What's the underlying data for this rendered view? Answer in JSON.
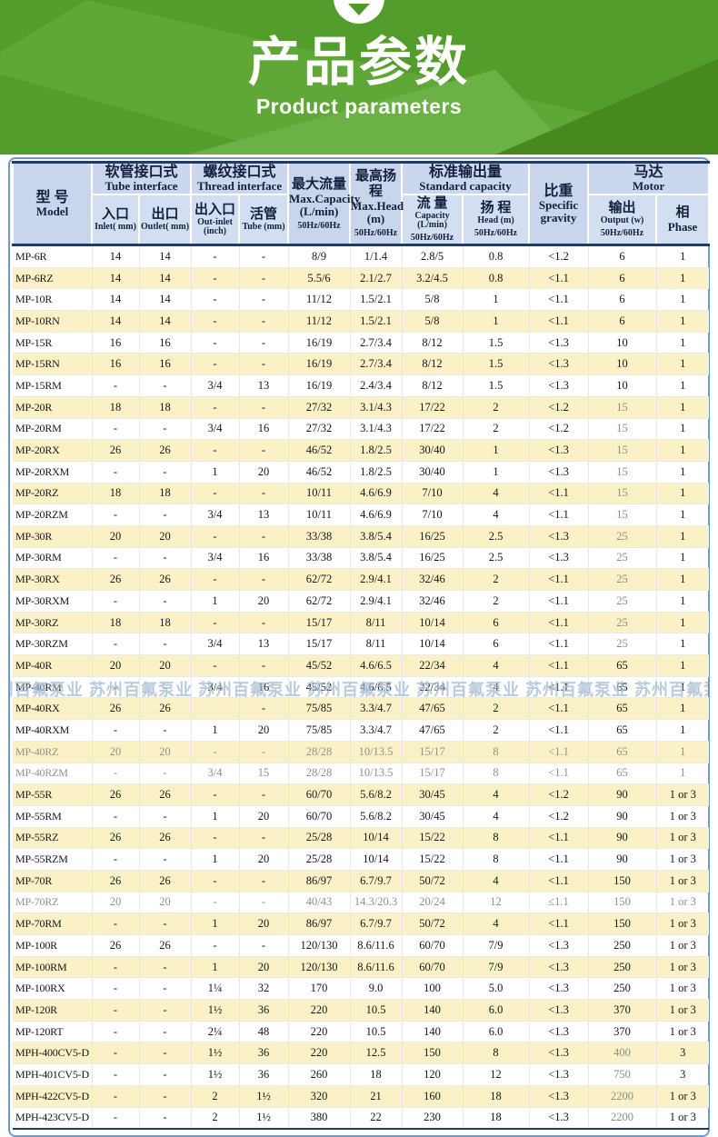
{
  "banner": {
    "title": "产品参数",
    "subtitle": "Product parameters"
  },
  "watermark": {
    "text": "苏州百氟泵业",
    "repeat": 7,
    "row_index": 20
  },
  "table": {
    "header": {
      "model_zh": "型 号",
      "model_en": "Model",
      "tube_if_zh": "软管接口式",
      "tube_if_en": "Tube interface",
      "inlet_zh": "入口",
      "inlet_en": "Inlet( mm)",
      "outlet_zh": "出口",
      "outlet_en": "Outlet( mm)",
      "thread_if_zh": "螺纹接口式",
      "thread_if_en": "Thread interface",
      "outinlet_zh": "出入口",
      "outinlet_en": "Out-inlet",
      "outinlet_unit": "(inch)",
      "tube_zh": "活管",
      "tube_en": "Tube (mm)",
      "maxcap_zh": "最大流量",
      "maxcap_en": "Max.Capacity",
      "maxcap_unit": "(L/min)",
      "maxcap_hz": "50Hz/60Hz",
      "maxhead_zh": "最高扬程",
      "maxhead_en": "Max.Head",
      "maxhead_unit": "(m)",
      "maxhead_hz": "50Hz/60Hz",
      "stdcap_zh": "标准输出量",
      "stdcap_en": "Standard capacity",
      "cap_zh": "流 量",
      "cap_en": "Capacity (L/min)",
      "cap_hz": "50Hz/60Hz",
      "head_zh": "扬 程",
      "head_en": "Head (m)",
      "head_hz": "50Hz/60Hz",
      "gravity_zh": "比重",
      "gravity_en1": "Specific",
      "gravity_en2": "gravity",
      "motor_zh": "马达",
      "motor_en": "Motor",
      "output_zh": "输出",
      "output_en": "Output (w)",
      "output_hz": "50Hz/60Hz",
      "phase_zh": "相",
      "phase_en": "Phase"
    },
    "muted_output_values": [
      "15",
      "25",
      "400",
      "750",
      "2200"
    ],
    "rows": [
      {
        "model": "MP-6R",
        "cells": [
          "14",
          "14",
          "-",
          "-",
          "8/9",
          "1/1.4",
          "2.8/5",
          "0.8",
          "<1.2",
          "6",
          "1"
        ]
      },
      {
        "model": "MP-6RZ",
        "cells": [
          "14",
          "14",
          "-",
          "-",
          "5.5/6",
          "2.1/2.7",
          "3.2/4.5",
          "0.8",
          "<1.1",
          "6",
          "1"
        ]
      },
      {
        "model": "MP-10R",
        "cells": [
          "14",
          "14",
          "-",
          "-",
          "11/12",
          "1.5/2.1",
          "5/8",
          "1",
          "<1.1",
          "6",
          "1"
        ]
      },
      {
        "model": "MP-10RN",
        "cells": [
          "14",
          "14",
          "-",
          "-",
          "11/12",
          "1.5/2.1",
          "5/8",
          "1",
          "<1.1",
          "6",
          "1"
        ]
      },
      {
        "model": "MP-15R",
        "cells": [
          "16",
          "16",
          "-",
          "-",
          "16/19",
          "2.7/3.4",
          "8/12",
          "1.5",
          "<1.3",
          "10",
          "1"
        ]
      },
      {
        "model": "MP-15RN",
        "cells": [
          "16",
          "16",
          "-",
          "-",
          "16/19",
          "2.7/3.4",
          "8/12",
          "1.5",
          "<1.3",
          "10",
          "1"
        ]
      },
      {
        "model": "MP-15RM",
        "cells": [
          "-",
          "-",
          "3/4",
          "13",
          "16/19",
          "2.4/3.4",
          "8/12",
          "1.5",
          "<1.3",
          "10",
          "1"
        ]
      },
      {
        "model": "MP-20R",
        "cells": [
          "18",
          "18",
          "-",
          "-",
          "27/32",
          "3.1/4.3",
          "17/22",
          "2",
          "<1.2",
          "15",
          "1"
        ]
      },
      {
        "model": "MP-20RM",
        "cells": [
          "-",
          "-",
          "3/4",
          "16",
          "27/32",
          "3.1/4.3",
          "17/22",
          "2",
          "<1.2",
          "15",
          "1"
        ]
      },
      {
        "model": "MP-20RX",
        "cells": [
          "26",
          "26",
          "-",
          "-",
          "46/52",
          "1.8/2.5",
          "30/40",
          "1",
          "<1.3",
          "15",
          "1"
        ]
      },
      {
        "model": "MP-20RXM",
        "cells": [
          "-",
          "-",
          "1",
          "20",
          "46/52",
          "1.8/2.5",
          "30/40",
          "1",
          "<1.3",
          "15",
          "1"
        ]
      },
      {
        "model": "MP-20RZ",
        "cells": [
          "18",
          "18",
          "-",
          "-",
          "10/11",
          "4.6/6.9",
          "7/10",
          "4",
          "<1.1",
          "15",
          "1"
        ]
      },
      {
        "model": "MP-20RZM",
        "cells": [
          "-",
          "-",
          "3/4",
          "13",
          "10/11",
          "4.6/6.9",
          "7/10",
          "4",
          "<1.1",
          "15",
          "1"
        ]
      },
      {
        "model": "MP-30R",
        "cells": [
          "20",
          "20",
          "-",
          "-",
          "33/38",
          "3.8/5.4",
          "16/25",
          "2.5",
          "<1.3",
          "25",
          "1"
        ]
      },
      {
        "model": "MP-30RM",
        "cells": [
          "-",
          "-",
          "3/4",
          "16",
          "33/38",
          "3.8/5.4",
          "16/25",
          "2.5",
          "<1.3",
          "25",
          "1"
        ]
      },
      {
        "model": "MP-30RX",
        "cells": [
          "26",
          "26",
          "-",
          "-",
          "62/72",
          "2.9/4.1",
          "32/46",
          "2",
          "<1.1",
          "25",
          "1"
        ]
      },
      {
        "model": "MP-30RXM",
        "cells": [
          "-",
          "-",
          "1",
          "20",
          "62/72",
          "2.9/4.1",
          "32/46",
          "2",
          "<1.1",
          "25",
          "1"
        ]
      },
      {
        "model": "MP-30RZ",
        "cells": [
          "18",
          "18",
          "-",
          "-",
          "15/17",
          "8/11",
          "10/14",
          "6",
          "<1.1",
          "25",
          "1"
        ]
      },
      {
        "model": "MP-30RZM",
        "cells": [
          "-",
          "-",
          "3/4",
          "13",
          "15/17",
          "8/11",
          "10/14",
          "6",
          "<1.1",
          "25",
          "1"
        ]
      },
      {
        "model": "MP-40R",
        "cells": [
          "20",
          "20",
          "-",
          "-",
          "45/52",
          "4.6/6.5",
          "22/34",
          "4",
          "<1.1",
          "65",
          "1"
        ]
      },
      {
        "model": "MP-40RM",
        "cells": [
          "-",
          "-",
          "3/4",
          "16",
          "45/52",
          "4.6/6.5",
          "22/34",
          "4",
          "<1.1",
          "65",
          "1"
        ]
      },
      {
        "model": "MP-40RX",
        "cells": [
          "26",
          "26",
          "",
          "-",
          "75/85",
          "3.3/4.7",
          "47/65",
          "2",
          "<1.1",
          "65",
          "1"
        ]
      },
      {
        "model": "MP-40RXM",
        "cells": [
          "-",
          "-",
          "1",
          "20",
          "75/85",
          "3.3/4.7",
          "47/65",
          "2",
          "<1.1",
          "65",
          "1"
        ]
      },
      {
        "model": "MP-40RZ",
        "muted": true,
        "cells": [
          "20",
          "20",
          "-",
          "-",
          "28/28",
          "10/13.5",
          "15/17",
          "8",
          "<1.1",
          "65",
          "1"
        ]
      },
      {
        "model": "MP-40RZM",
        "muted": true,
        "cells": [
          "-",
          "-",
          "3/4",
          "15",
          "28/28",
          "10/13.5",
          "15/17",
          "8",
          "<1.1",
          "65",
          "1"
        ]
      },
      {
        "model": "MP-55R",
        "cells": [
          "26",
          "26",
          "-",
          "-",
          "60/70",
          "5.6/8.2",
          "30/45",
          "4",
          "<1.2",
          "90",
          "1 or 3"
        ]
      },
      {
        "model": "MP-55RM",
        "cells": [
          "-",
          "-",
          "1",
          "20",
          "60/70",
          "5.6/8.2",
          "30/45",
          "4",
          "<1.2",
          "90",
          "1 or 3"
        ]
      },
      {
        "model": "MP-55RZ",
        "cells": [
          "26",
          "26",
          "-",
          "-",
          "25/28",
          "10/14",
          "15/22",
          "8",
          "<1.1",
          "90",
          "1 or 3"
        ]
      },
      {
        "model": "MP-55RZM",
        "cells": [
          "-",
          "-",
          "1",
          "20",
          "25/28",
          "10/14",
          "15/22",
          "8",
          "<1.1",
          "90",
          "1 or 3"
        ]
      },
      {
        "model": "MP-70R",
        "cells": [
          "26",
          "26",
          "-",
          "-",
          "86/97",
          "6.7/9.7",
          "50/72",
          "4",
          "<1.1",
          "150",
          "1 or 3"
        ]
      },
      {
        "model": "MP-70RZ",
        "muted": true,
        "cells": [
          "20",
          "20",
          "-",
          "-",
          "40/43",
          "14.3/20.3",
          "20/24",
          "12",
          "≤1.1",
          "150",
          "1 or 3"
        ]
      },
      {
        "model": "MP-70RM",
        "cells": [
          "-",
          "-",
          "1",
          "20",
          "86/97",
          "6.7/9.7",
          "50/72",
          "4",
          "<1.1",
          "150",
          "1 or 3"
        ]
      },
      {
        "model": "MP-100R",
        "cells": [
          "26",
          "26",
          "-",
          "-",
          "120/130",
          "8.6/11.6",
          "60/70",
          "7/9",
          "<1.3",
          "250",
          "1 or 3"
        ]
      },
      {
        "model": "MP-100RM",
        "cells": [
          "-",
          "-",
          "1",
          "20",
          "120/130",
          "8.6/11.6",
          "60/70",
          "7/9",
          "<1.3",
          "250",
          "1 or 3"
        ]
      },
      {
        "model": "MP-100RX",
        "cells": [
          "-",
          "-",
          "1¼",
          "32",
          "170",
          "9.0",
          "100",
          "5.0",
          "<1.3",
          "250",
          "1 or 3"
        ]
      },
      {
        "model": "MP-120R",
        "cells": [
          "-",
          "-",
          "1½",
          "36",
          "220",
          "10.5",
          "140",
          "6.0",
          "<1.3",
          "370",
          "1 or 3"
        ]
      },
      {
        "model": "MP-120RT",
        "cells": [
          "-",
          "-",
          "2¼",
          "48",
          "220",
          "10.5",
          "140",
          "6.0",
          "<1.3",
          "370",
          "1 or 3"
        ]
      },
      {
        "model": "MPH-400CV5-D",
        "cells": [
          "-",
          "-",
          "1½",
          "36",
          "220",
          "12.5",
          "150",
          "8",
          "<1.3",
          "400",
          "3"
        ]
      },
      {
        "model": "MPH-401CV5-D",
        "cells": [
          "-",
          "-",
          "1½",
          "36",
          "260",
          "18",
          "120",
          "12",
          "<1.3",
          "750",
          "3"
        ]
      },
      {
        "model": "MPH-422CV5-D",
        "cells": [
          "-",
          "-",
          "2",
          "1½",
          "320",
          "21",
          "160",
          "18",
          "<1.3",
          "2200",
          "1 or 3"
        ]
      },
      {
        "model": "MPH-423CV5-D",
        "cells": [
          "-",
          "-",
          "2",
          "1½",
          "380",
          "22",
          "230",
          "18",
          "<1.3",
          "2200",
          "1 or 3"
        ]
      }
    ]
  }
}
